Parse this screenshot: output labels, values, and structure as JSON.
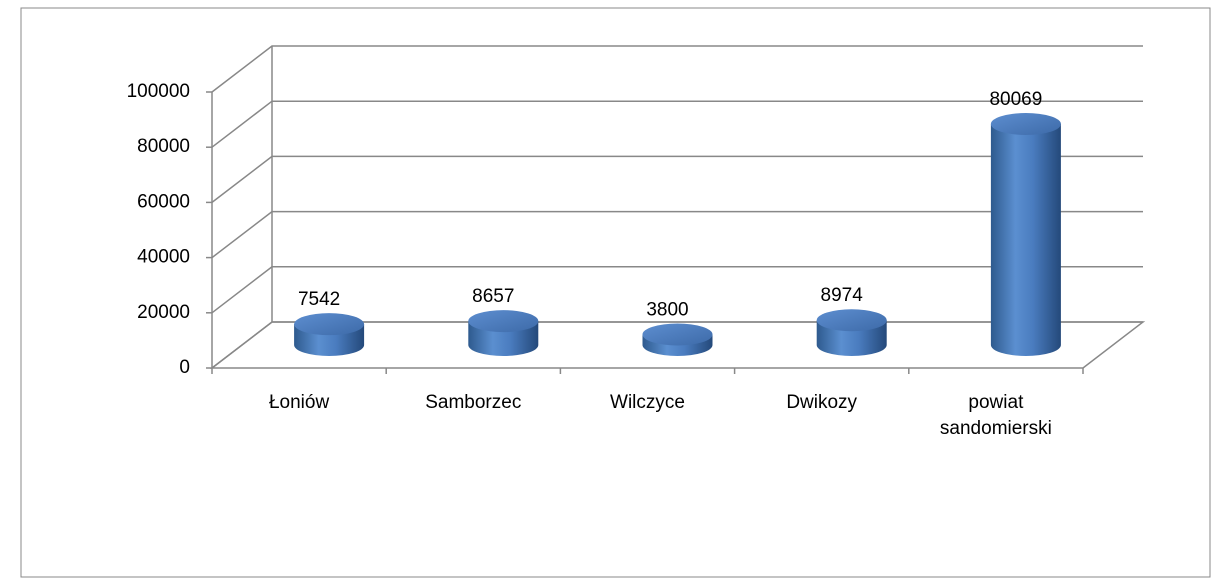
{
  "chart_data": {
    "type": "bar3d",
    "categories": [
      "Łoniów",
      "Samborzec",
      "Wilczyce",
      "Dwikozy",
      "powiat sandomierski"
    ],
    "values": [
      7542,
      8657,
      3800,
      8974,
      80069
    ],
    "color": "#4f81bd",
    "ylim": [
      0,
      100000
    ],
    "yticks": [
      0,
      20000,
      40000,
      60000,
      80000,
      100000
    ],
    "grid": true
  }
}
